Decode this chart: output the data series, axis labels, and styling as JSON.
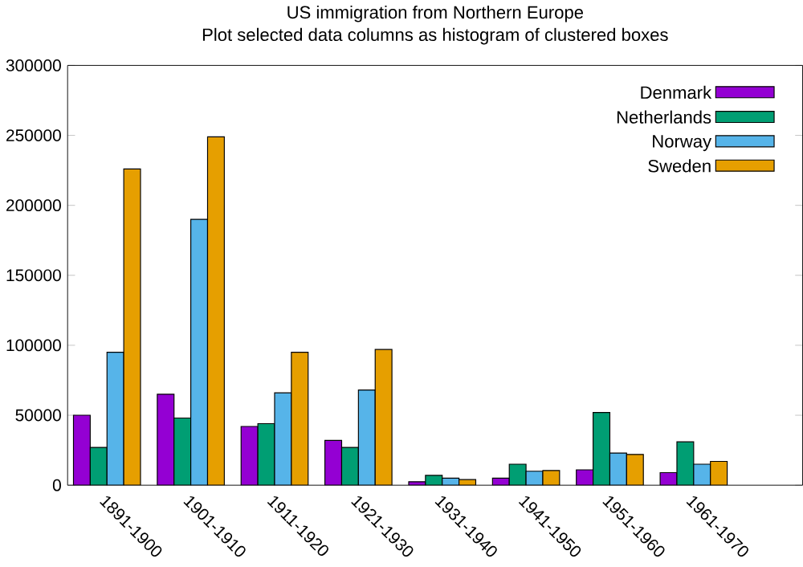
{
  "chart_data": {
    "type": "bar",
    "title": "US immigration from Northern Europe",
    "subtitle": "Plot selected data columns as histogram of clustered boxes",
    "categories": [
      "1891-1900",
      "1901-1910",
      "1911-1920",
      "1921-1930",
      "1931-1940",
      "1941-1950",
      "1951-1960",
      "1961-1970"
    ],
    "series": [
      {
        "name": "Denmark",
        "color": "#9400d3",
        "values": [
          50000,
          65000,
          42000,
          32000,
          2500,
          5000,
          11000,
          9000
        ]
      },
      {
        "name": "Netherlands",
        "color": "#009e73",
        "values": [
          27000,
          48000,
          44000,
          27000,
          7000,
          15000,
          52000,
          31000
        ]
      },
      {
        "name": "Norway",
        "color": "#56b4e9",
        "values": [
          95000,
          190000,
          66000,
          68000,
          5000,
          10000,
          23000,
          15000
        ]
      },
      {
        "name": "Sweden",
        "color": "#e69f00",
        "values": [
          226000,
          249000,
          95000,
          97000,
          4000,
          10500,
          22000,
          17000
        ]
      }
    ],
    "ylim": [
      0,
      300000
    ],
    "yticks": [
      0,
      50000,
      100000,
      150000,
      200000,
      250000,
      300000
    ],
    "legend": "top right"
  }
}
